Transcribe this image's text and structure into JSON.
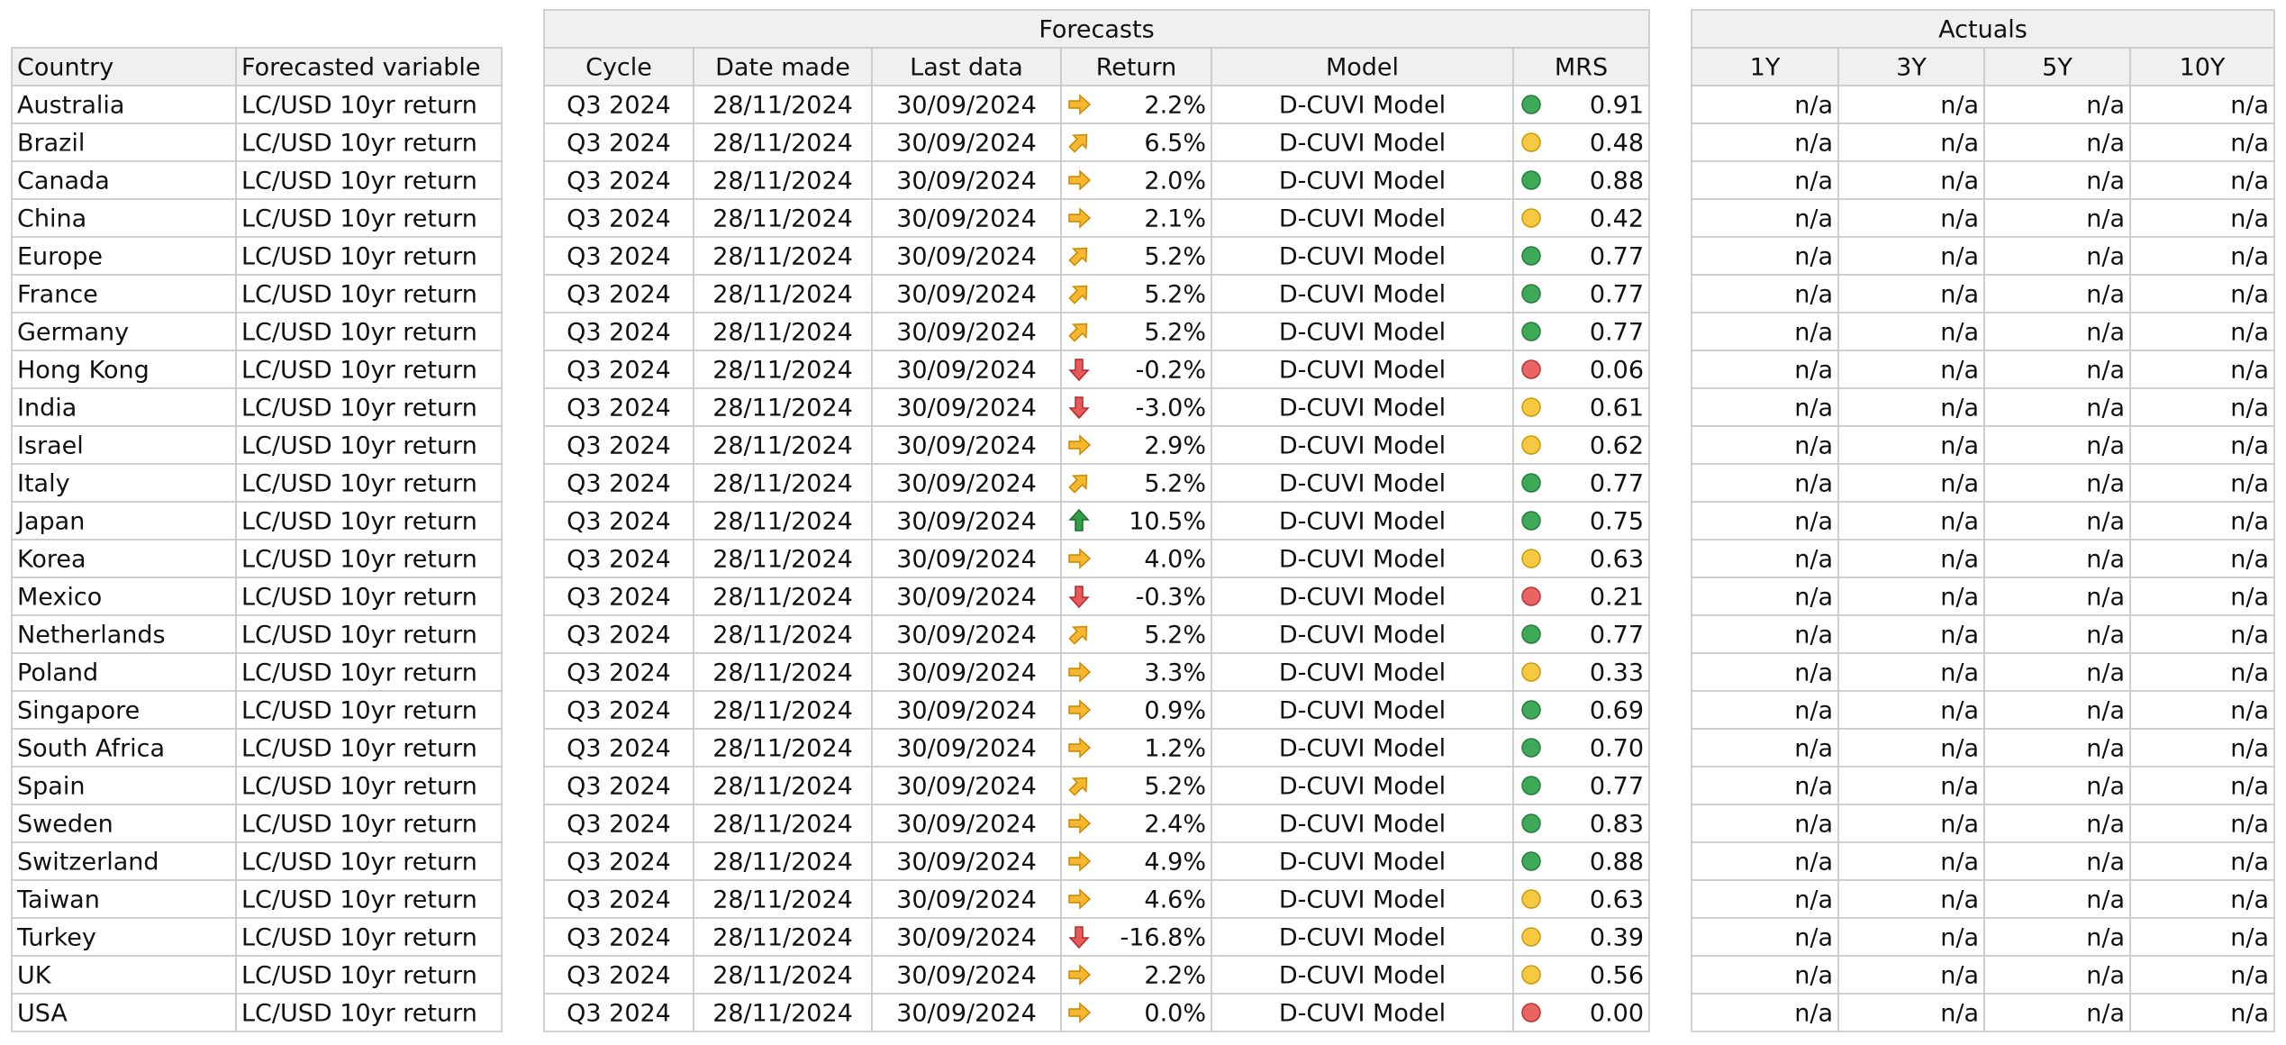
{
  "left": {
    "header": [
      "Country",
      "Forecasted variable"
    ],
    "rows": [
      [
        "Australia",
        "LC/USD 10yr return"
      ],
      [
        "Brazil",
        "LC/USD 10yr return"
      ],
      [
        "Canada",
        "LC/USD 10yr return"
      ],
      [
        "China",
        "LC/USD 10yr return"
      ],
      [
        "Europe",
        "LC/USD 10yr return"
      ],
      [
        "France",
        "LC/USD 10yr return"
      ],
      [
        "Germany",
        "LC/USD 10yr return"
      ],
      [
        "Hong Kong",
        "LC/USD 10yr return"
      ],
      [
        "India",
        "LC/USD 10yr return"
      ],
      [
        "Israel",
        "LC/USD 10yr return"
      ],
      [
        "Italy",
        "LC/USD 10yr return"
      ],
      [
        "Japan",
        "LC/USD 10yr return"
      ],
      [
        "Korea",
        "LC/USD 10yr return"
      ],
      [
        "Mexico",
        "LC/USD 10yr return"
      ],
      [
        "Netherlands",
        "LC/USD 10yr return"
      ],
      [
        "Poland",
        "LC/USD 10yr return"
      ],
      [
        "Singapore",
        "LC/USD 10yr return"
      ],
      [
        "South Africa",
        "LC/USD 10yr return"
      ],
      [
        "Spain",
        "LC/USD 10yr return"
      ],
      [
        "Sweden",
        "LC/USD 10yr return"
      ],
      [
        "Switzerland",
        "LC/USD 10yr return"
      ],
      [
        "Taiwan",
        "LC/USD 10yr return"
      ],
      [
        "Turkey",
        "LC/USD 10yr return"
      ],
      [
        "UK",
        "LC/USD 10yr return"
      ],
      [
        "USA",
        "LC/USD 10yr return"
      ]
    ]
  },
  "forecasts": {
    "title": "Forecasts",
    "header": [
      "Cycle",
      "Date made",
      "Last data",
      "Return",
      "Model",
      "MRS"
    ],
    "rows": [
      [
        "Q3 2024",
        "28/11/2024",
        "30/09/2024",
        "2.2%",
        "D-CUVI Model",
        "0.91"
      ],
      [
        "Q3 2024",
        "28/11/2024",
        "30/09/2024",
        "6.5%",
        "D-CUVI Model",
        "0.48"
      ],
      [
        "Q3 2024",
        "28/11/2024",
        "30/09/2024",
        "2.0%",
        "D-CUVI Model",
        "0.88"
      ],
      [
        "Q3 2024",
        "28/11/2024",
        "30/09/2024",
        "2.1%",
        "D-CUVI Model",
        "0.42"
      ],
      [
        "Q3 2024",
        "28/11/2024",
        "30/09/2024",
        "5.2%",
        "D-CUVI Model",
        "0.77"
      ],
      [
        "Q3 2024",
        "28/11/2024",
        "30/09/2024",
        "5.2%",
        "D-CUVI Model",
        "0.77"
      ],
      [
        "Q3 2024",
        "28/11/2024",
        "30/09/2024",
        "5.2%",
        "D-CUVI Model",
        "0.77"
      ],
      [
        "Q3 2024",
        "28/11/2024",
        "30/09/2024",
        "-0.2%",
        "D-CUVI Model",
        "0.06"
      ],
      [
        "Q3 2024",
        "28/11/2024",
        "30/09/2024",
        "-3.0%",
        "D-CUVI Model",
        "0.61"
      ],
      [
        "Q3 2024",
        "28/11/2024",
        "30/09/2024",
        "2.9%",
        "D-CUVI Model",
        "0.62"
      ],
      [
        "Q3 2024",
        "28/11/2024",
        "30/09/2024",
        "5.2%",
        "D-CUVI Model",
        "0.77"
      ],
      [
        "Q3 2024",
        "28/11/2024",
        "30/09/2024",
        "10.5%",
        "D-CUVI Model",
        "0.75"
      ],
      [
        "Q3 2024",
        "28/11/2024",
        "30/09/2024",
        "4.0%",
        "D-CUVI Model",
        "0.63"
      ],
      [
        "Q3 2024",
        "28/11/2024",
        "30/09/2024",
        "-0.3%",
        "D-CUVI Model",
        "0.21"
      ],
      [
        "Q3 2024",
        "28/11/2024",
        "30/09/2024",
        "5.2%",
        "D-CUVI Model",
        "0.77"
      ],
      [
        "Q3 2024",
        "28/11/2024",
        "30/09/2024",
        "3.3%",
        "D-CUVI Model",
        "0.33"
      ],
      [
        "Q3 2024",
        "28/11/2024",
        "30/09/2024",
        "0.9%",
        "D-CUVI Model",
        "0.69"
      ],
      [
        "Q3 2024",
        "28/11/2024",
        "30/09/2024",
        "1.2%",
        "D-CUVI Model",
        "0.70"
      ],
      [
        "Q3 2024",
        "28/11/2024",
        "30/09/2024",
        "5.2%",
        "D-CUVI Model",
        "0.77"
      ],
      [
        "Q3 2024",
        "28/11/2024",
        "30/09/2024",
        "2.4%",
        "D-CUVI Model",
        "0.83"
      ],
      [
        "Q3 2024",
        "28/11/2024",
        "30/09/2024",
        "4.9%",
        "D-CUVI Model",
        "0.88"
      ],
      [
        "Q3 2024",
        "28/11/2024",
        "30/09/2024",
        "4.6%",
        "D-CUVI Model",
        "0.63"
      ],
      [
        "Q3 2024",
        "28/11/2024",
        "30/09/2024",
        "-16.8%",
        "D-CUVI Model",
        "0.39"
      ],
      [
        "Q3 2024",
        "28/11/2024",
        "30/09/2024",
        "2.2%",
        "D-CUVI Model",
        "0.56"
      ],
      [
        "Q3 2024",
        "28/11/2024",
        "30/09/2024",
        "0.0%",
        "D-CUVI Model",
        "0.00"
      ]
    ],
    "arrows": [
      "right",
      "up-right",
      "right",
      "right",
      "up-right",
      "up-right",
      "up-right",
      "down",
      "down",
      "right",
      "up-right",
      "up",
      "right",
      "down",
      "up-right",
      "right",
      "right",
      "right",
      "up-right",
      "right",
      "right",
      "right",
      "down",
      "right",
      "right"
    ],
    "dots": [
      "green",
      "yellow",
      "green",
      "yellow",
      "green",
      "green",
      "green",
      "red",
      "yellow",
      "yellow",
      "green",
      "green",
      "yellow",
      "red",
      "green",
      "yellow",
      "green",
      "green",
      "green",
      "green",
      "green",
      "yellow",
      "yellow",
      "yellow",
      "red"
    ]
  },
  "actuals": {
    "title": "Actuals",
    "header": [
      "1Y",
      "3Y",
      "5Y",
      "10Y"
    ],
    "rows": [
      [
        "n/a",
        "n/a",
        "n/a",
        "n/a"
      ],
      [
        "n/a",
        "n/a",
        "n/a",
        "n/a"
      ],
      [
        "n/a",
        "n/a",
        "n/a",
        "n/a"
      ],
      [
        "n/a",
        "n/a",
        "n/a",
        "n/a"
      ],
      [
        "n/a",
        "n/a",
        "n/a",
        "n/a"
      ],
      [
        "n/a",
        "n/a",
        "n/a",
        "n/a"
      ],
      [
        "n/a",
        "n/a",
        "n/a",
        "n/a"
      ],
      [
        "n/a",
        "n/a",
        "n/a",
        "n/a"
      ],
      [
        "n/a",
        "n/a",
        "n/a",
        "n/a"
      ],
      [
        "n/a",
        "n/a",
        "n/a",
        "n/a"
      ],
      [
        "n/a",
        "n/a",
        "n/a",
        "n/a"
      ],
      [
        "n/a",
        "n/a",
        "n/a",
        "n/a"
      ],
      [
        "n/a",
        "n/a",
        "n/a",
        "n/a"
      ],
      [
        "n/a",
        "n/a",
        "n/a",
        "n/a"
      ],
      [
        "n/a",
        "n/a",
        "n/a",
        "n/a"
      ],
      [
        "n/a",
        "n/a",
        "n/a",
        "n/a"
      ],
      [
        "n/a",
        "n/a",
        "n/a",
        "n/a"
      ],
      [
        "n/a",
        "n/a",
        "n/a",
        "n/a"
      ],
      [
        "n/a",
        "n/a",
        "n/a",
        "n/a"
      ],
      [
        "n/a",
        "n/a",
        "n/a",
        "n/a"
      ],
      [
        "n/a",
        "n/a",
        "n/a",
        "n/a"
      ],
      [
        "n/a",
        "n/a",
        "n/a",
        "n/a"
      ],
      [
        "n/a",
        "n/a",
        "n/a",
        "n/a"
      ],
      [
        "n/a",
        "n/a",
        "n/a",
        "n/a"
      ],
      [
        "n/a",
        "n/a",
        "n/a",
        "n/a"
      ]
    ]
  }
}
